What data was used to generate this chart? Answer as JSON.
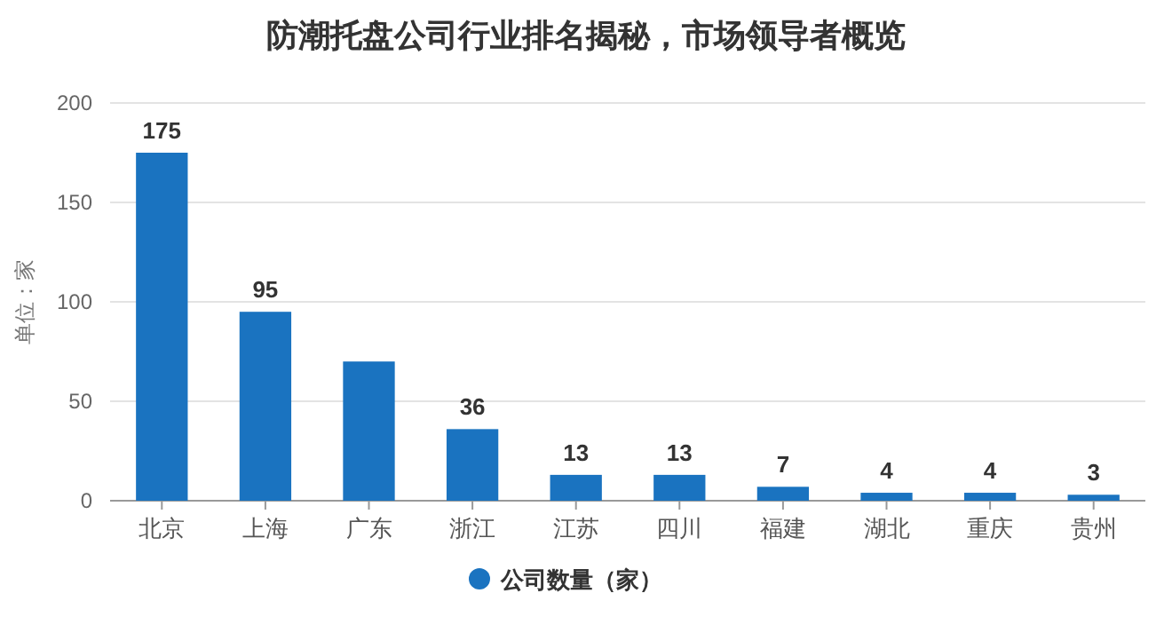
{
  "chart_data": {
    "type": "bar",
    "title": "防潮托盘公司行业排名揭秘，市场领导者概览",
    "ylabel": "单位：家",
    "categories": [
      "北京",
      "上海",
      "广东",
      "浙江",
      "江苏",
      "四川",
      "福建",
      "湖北",
      "重庆",
      "贵州"
    ],
    "series": [
      {
        "name": "公司数量（家）",
        "color": "#1a73c0",
        "values": [
          175,
          95,
          70,
          36,
          13,
          13,
          7,
          4,
          4,
          3
        ],
        "value_labels": [
          "175",
          "95",
          null,
          "36",
          "13",
          "13",
          "7",
          "4",
          "4",
          "3"
        ]
      }
    ],
    "ylim": [
      0,
      200
    ],
    "yticks": [
      0,
      50,
      100,
      150,
      200
    ],
    "grid": "y",
    "legend": "bottom"
  }
}
